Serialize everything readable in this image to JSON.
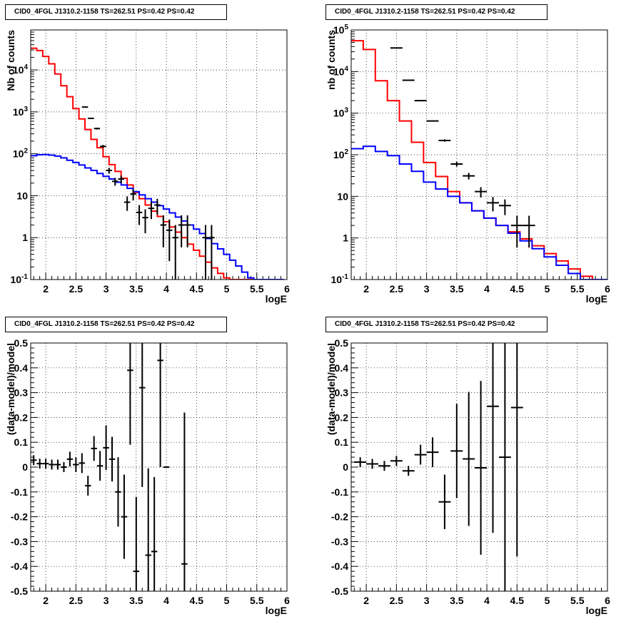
{
  "chart_data": [
    {
      "id": "p1",
      "type": "step",
      "title": "CID0_4FGL J1310.2-1158 TS=262.51 PS=0.42 PS=0.42",
      "xlabel": "logE",
      "ylabel": "Nb of counts",
      "log_y": true,
      "xlim": [
        1.75,
        6.0
      ],
      "ylim": [
        0.1,
        90000
      ],
      "xticks": [
        "2",
        "2.5",
        "3",
        "3.5",
        "4",
        "4.5",
        "5",
        "5.5",
        "6"
      ],
      "yticks": [
        "10^{-1}",
        "1",
        "10",
        "10^{2}",
        "10^{3}",
        "10^{4}"
      ],
      "grid": true,
      "bin_width": 0.1,
      "series": [
        {
          "color": "#ff0000",
          "kind": "hist",
          "x0": 1.75,
          "values": [
            33000,
            29000,
            21000,
            14000,
            8000,
            4200,
            2300,
            1200,
            680,
            380,
            220,
            140,
            85,
            55,
            38,
            26,
            18,
            12,
            8.5,
            6,
            4.3,
            3.2,
            2.4,
            1.8,
            1.35,
            1.0,
            0.7,
            0.5,
            0.36,
            0.26,
            0.19,
            0.14,
            0.11,
            0.1,
            0.1,
            0.1,
            0.1,
            0.1,
            0.1,
            0.1,
            0.1,
            0.1
          ]
        },
        {
          "color": "#0000ff",
          "kind": "hist",
          "x0": 1.75,
          "values": [
            90,
            95,
            96,
            93,
            88,
            80,
            70,
            62,
            54,
            46,
            40,
            34,
            29,
            25,
            21,
            18,
            15,
            12.5,
            10.5,
            8.5,
            7,
            5.8,
            4.8,
            3.9,
            3.1,
            2.5,
            2.0,
            1.6,
            1.25,
            0.95,
            0.72,
            0.54,
            0.4,
            0.29,
            0.21,
            0.15,
            0.11,
            0.1,
            0.1,
            0.1,
            0.1,
            0.1
          ]
        },
        {
          "color": "#000000",
          "kind": "points",
          "x": [
            2.65,
            2.75,
            2.85,
            2.95,
            3.05,
            3.15,
            3.25,
            3.35,
            3.45,
            3.55,
            3.65,
            3.75,
            3.85,
            3.95,
            4.05,
            4.15,
            4.25,
            4.35,
            4.45,
            4.55,
            4.65,
            4.75
          ],
          "y": [
            1300,
            700,
            400,
            150,
            40,
            22,
            25,
            7,
            11,
            4,
            3,
            5,
            6,
            2,
            1.5,
            1,
            2,
            2,
            0.1,
            0.1,
            1,
            1
          ],
          "xerr": 0.05
        }
      ]
    },
    {
      "id": "p2",
      "type": "step",
      "title": "CID0_4FGL J1310.2-1158 TS=262.51 PS=0.42 PS=0.42",
      "xlabel": "logE",
      "ylabel": "nb of counts",
      "log_y": true,
      "xlim": [
        1.75,
        6.0
      ],
      "ylim": [
        0.1,
        100000
      ],
      "xticks": [
        "2",
        "2.5",
        "3",
        "3.5",
        "4",
        "4.5",
        "5",
        "5.5",
        "6"
      ],
      "yticks": [
        "10^{-1}",
        "1",
        "10",
        "10^{2}",
        "10^{3}",
        "10^{4}",
        "10^{5}"
      ],
      "grid": true,
      "bin_width": 0.2,
      "series": [
        {
          "color": "#ff0000",
          "kind": "hist",
          "x0": 1.75,
          "values": [
            55000,
            34000,
            6000,
            2000,
            650,
            200,
            65,
            30,
            13,
            7,
            4.5,
            3,
            2,
            1.4,
            0.95,
            0.65,
            0.42,
            0.28,
            0.18,
            0.12,
            0.1,
            0.1
          ]
        },
        {
          "color": "#0000ff",
          "kind": "hist",
          "x0": 1.75,
          "values": [
            140,
            160,
            120,
            95,
            60,
            40,
            22,
            15,
            10,
            7,
            4.5,
            3,
            2,
            1.3,
            0.85,
            0.55,
            0.35,
            0.22,
            0.14,
            0.1,
            0.1,
            0.1
          ]
        },
        {
          "color": "#000000",
          "kind": "points",
          "x": [
            2.5,
            2.7,
            2.9,
            3.1,
            3.3,
            3.5,
            3.7,
            3.9,
            4.1,
            4.3,
            4.5,
            4.7
          ],
          "y": [
            37000,
            6200,
            2000,
            650,
            220,
            60,
            31,
            13,
            7,
            6,
            2,
            2
          ],
          "xerr": 0.1
        }
      ]
    },
    {
      "id": "p3",
      "type": "scatter",
      "title": "CID0_4FGL J1310.2-1158 TS=262.51 PS=0.42 PS=0.42",
      "xlabel": "logE",
      "ylabel": "(data-model)/model",
      "log_y": false,
      "xlim": [
        1.75,
        6.0
      ],
      "ylim": [
        -0.5,
        0.5
      ],
      "xticks": [
        "2",
        "2.5",
        "3",
        "3.5",
        "4",
        "4.5",
        "5",
        "5.5",
        "6"
      ],
      "yticks": [
        "-0.5",
        "-0.4",
        "-0.3",
        "-0.2",
        "-0.1",
        "0",
        "0.1",
        "0.2",
        "0.3",
        "0.4",
        "0.5"
      ],
      "grid": true,
      "series": [
        {
          "color": "#000000",
          "kind": "errorbars",
          "xerr": 0.05,
          "x": [
            1.8,
            1.9,
            2.0,
            2.1,
            2.2,
            2.3,
            2.4,
            2.5,
            2.6,
            2.7,
            2.8,
            2.9,
            3.0,
            3.1,
            3.2,
            3.3,
            3.4,
            3.5,
            3.6,
            3.7,
            3.8,
            3.9,
            4.0,
            4.3
          ],
          "y": [
            0.028,
            0.014,
            0.014,
            0.01,
            0.01,
            0.0,
            0.032,
            0.01,
            0.016,
            -0.075,
            0.075,
            0.005,
            0.078,
            0.032,
            -0.1,
            -0.2,
            0.39,
            -0.42,
            0.32,
            -0.355,
            -0.34,
            0.43,
            0.0,
            -0.39
          ],
          "yerr": [
            0.02,
            0.02,
            0.02,
            0.02,
            0.02,
            0.02,
            0.03,
            0.03,
            0.04,
            0.04,
            0.05,
            0.06,
            0.09,
            0.09,
            0.14,
            0.17,
            0.3,
            0.3,
            0.4,
            0.35,
            0.3,
            0.43,
            0.0,
            0.61
          ]
        }
      ]
    },
    {
      "id": "p4",
      "type": "scatter",
      "title": "CID0_4FGL J1310.2-1158 TS=262.51 PS=0.42 PS=0.42",
      "xlabel": "logE",
      "ylabel": "(data-model)/model",
      "log_y": false,
      "xlim": [
        1.75,
        6.0
      ],
      "ylim": [
        -0.5,
        0.5
      ],
      "xticks": [
        "2",
        "2.5",
        "3",
        "3.5",
        "4",
        "4.5",
        "5",
        "5.5",
        "6"
      ],
      "yticks": [
        "-0.5",
        "-0.4",
        "-0.3",
        "-0.2",
        "-0.1",
        "0",
        "0.1",
        "0.2",
        "0.3",
        "0.4",
        "0.5"
      ],
      "grid": true,
      "series": [
        {
          "color": "#000000",
          "kind": "errorbars",
          "xerr": 0.1,
          "x": [
            1.9,
            2.1,
            2.3,
            2.5,
            2.7,
            2.9,
            3.1,
            3.3,
            3.5,
            3.7,
            3.9,
            4.1,
            4.3,
            4.5
          ],
          "y": [
            0.02,
            0.013,
            0.005,
            0.025,
            -0.015,
            0.05,
            0.06,
            -0.14,
            0.065,
            0.033,
            -0.003,
            0.245,
            0.04,
            0.24
          ],
          "yerr": [
            0.02,
            0.02,
            0.02,
            0.02,
            0.02,
            0.04,
            0.06,
            0.11,
            0.19,
            0.27,
            0.35,
            0.51,
            0.6,
            0.6
          ]
        }
      ]
    }
  ]
}
